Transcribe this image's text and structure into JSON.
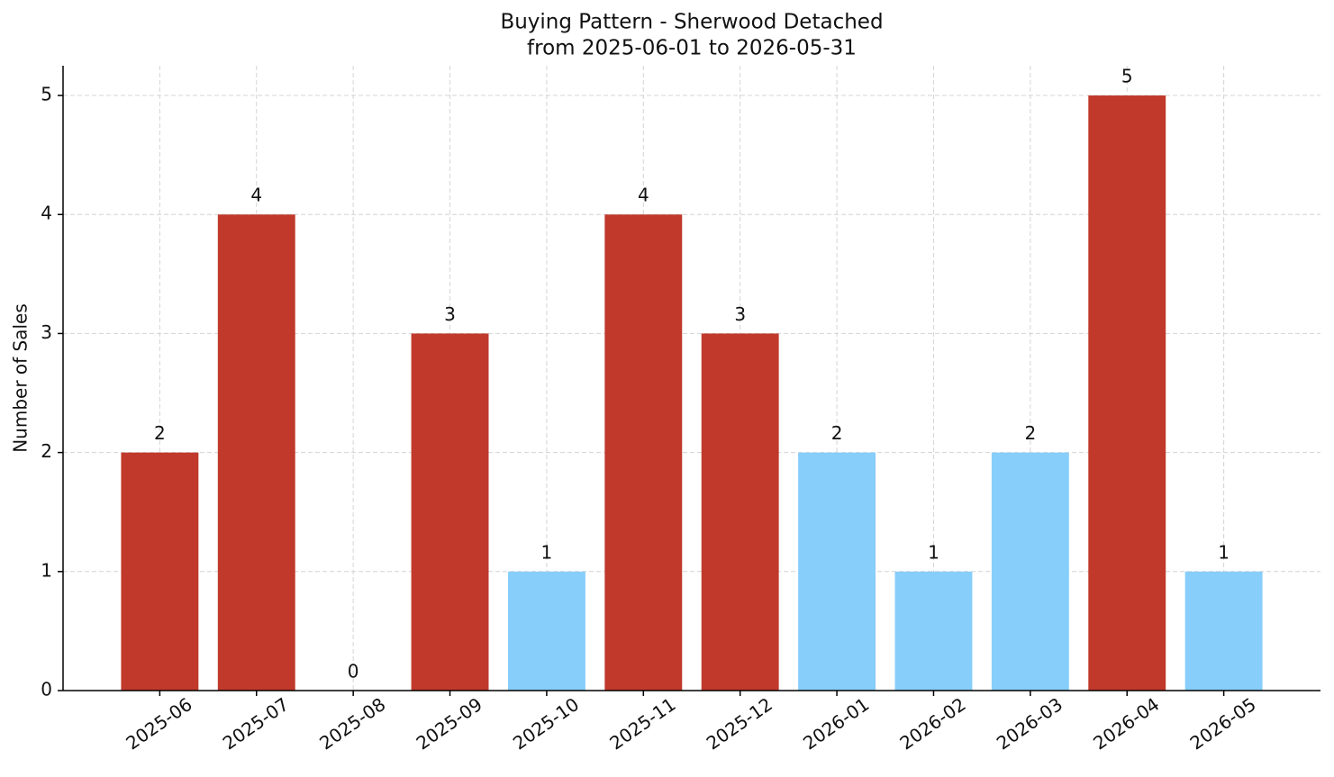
{
  "chart_data": {
    "type": "bar",
    "title": "Buying Pattern - Sherwood Detached",
    "subtitle": "from 2025-06-01 to 2026-05-31",
    "y_label": "Number of Sales",
    "categories": [
      "2025-06",
      "2025-07",
      "2025-08",
      "2025-09",
      "2025-10",
      "2025-11",
      "2025-12",
      "2026-01",
      "2026-02",
      "2026-03",
      "2026-04",
      "2026-05"
    ],
    "values": [
      2,
      4,
      0,
      3,
      1,
      4,
      3,
      2,
      1,
      2,
      5,
      1
    ],
    "colors": [
      "#c0392b",
      "#c0392b",
      "#c0392b",
      "#c0392b",
      "#87cefa",
      "#c0392b",
      "#c0392b",
      "#87cefa",
      "#87cefa",
      "#87cefa",
      "#c0392b",
      "#87cefa"
    ],
    "ylim": [
      0,
      5.25
    ],
    "yticks": [
      0,
      1,
      2,
      3,
      4,
      5
    ],
    "grid": true
  }
}
